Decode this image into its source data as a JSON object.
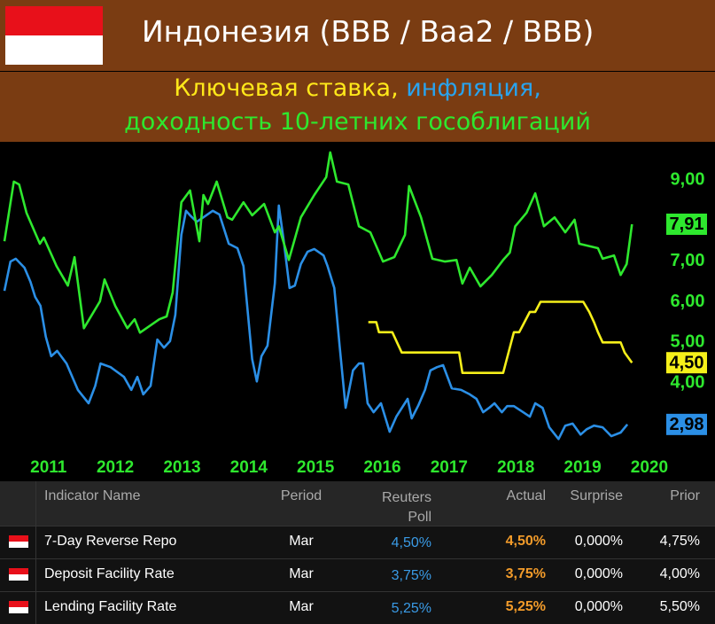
{
  "header": {
    "title": "Индонезия (BBB / Baa2 / BBB)"
  },
  "chart_data": {
    "type": "line",
    "subtitle": [
      "Ключевая ставка,",
      "инфляция,",
      "доходность 10-летних гособлигаций"
    ],
    "xlim": [
      2010.3,
      2020.2
    ],
    "xticks": [
      2011,
      2012,
      2013,
      2014,
      2015,
      2016,
      2017,
      2018,
      2019,
      2020
    ],
    "ylim": [
      2.3,
      9.83
    ],
    "yticks": [
      {
        "value": 9,
        "label": "9,00"
      },
      {
        "value": 7,
        "label": "7,00"
      },
      {
        "value": 6,
        "label": "6,00"
      },
      {
        "value": 5,
        "label": "5,00"
      },
      {
        "value": 4,
        "label": "4,00"
      }
    ],
    "tick_color": "#2ee82e",
    "series": [
      {
        "color": "#f5ef1a",
        "x": [
          2015.79,
          2015.91,
          2015.95,
          2016.15,
          2016.22,
          2016.29,
          2017.15,
          2017.2,
          2017.81,
          2017.97,
          2018.05,
          2018.13,
          2018.21,
          2018.29,
          2018.37,
          2019.01,
          2019.1,
          2019.17,
          2019.23,
          2019.3,
          2019.57,
          2019.63,
          2019.74
        ],
        "values": [
          5.5,
          5.5,
          5.25,
          5.25,
          5.0,
          4.75,
          4.75,
          4.25,
          4.25,
          5.25,
          5.25,
          5.5,
          5.75,
          5.75,
          6.0,
          6.0,
          5.75,
          5.5,
          5.25,
          5.0,
          5.0,
          4.75,
          4.5
        ],
        "value_labels": [
          null,
          null,
          null,
          null,
          null,
          null,
          null,
          null,
          null,
          null,
          null,
          null,
          null,
          null,
          null,
          null,
          null,
          null,
          null,
          null,
          null,
          null,
          "4,50"
        ]
      },
      {
        "color": "#2b8fe6",
        "x": [
          2010.34,
          2010.43,
          2010.51,
          2010.64,
          2010.73,
          2010.8,
          2010.88,
          2010.96,
          2011.04,
          2011.13,
          2011.27,
          2011.44,
          2011.6,
          2011.7,
          2011.78,
          2011.93,
          2012.13,
          2012.24,
          2012.33,
          2012.42,
          2012.53,
          2012.63,
          2012.73,
          2012.82,
          2012.9,
          2012.99,
          2013.06,
          2013.12,
          2013.22,
          2013.32,
          2013.46,
          2013.56,
          2013.7,
          2013.83,
          2013.92,
          2014.05,
          2014.12,
          2014.19,
          2014.28,
          2014.39,
          2014.45,
          2014.52,
          2014.61,
          2014.69,
          2014.78,
          2014.88,
          2014.98,
          2015.12,
          2015.18,
          2015.28,
          2015.36,
          2015.45,
          2015.56,
          2015.65,
          2015.71,
          2015.78,
          2015.87,
          2015.98,
          2016.11,
          2016.21,
          2016.38,
          2016.44,
          2016.54,
          2016.64,
          2016.72,
          2016.82,
          2016.91,
          2017.04,
          2017.18,
          2017.31,
          2017.41,
          2017.51,
          2017.6,
          2017.68,
          2017.79,
          2017.87,
          2017.97,
          2018.11,
          2018.21,
          2018.29,
          2018.4,
          2018.5,
          2018.64,
          2018.74,
          2018.85,
          2018.97,
          2019.06,
          2019.17,
          2019.3,
          2019.43,
          2019.57,
          2019.67
        ],
        "values": [
          6.27,
          6.99,
          7.06,
          6.84,
          6.49,
          6.12,
          5.9,
          5.14,
          4.66,
          4.79,
          4.48,
          3.83,
          3.5,
          3.93,
          4.48,
          4.39,
          4.15,
          3.83,
          4.15,
          3.72,
          3.93,
          5.07,
          4.87,
          5.03,
          5.68,
          7.65,
          8.24,
          8.13,
          7.97,
          8.08,
          8.24,
          8.15,
          7.43,
          7.32,
          6.88,
          4.59,
          4.04,
          4.66,
          4.92,
          6.45,
          8.37,
          7.54,
          6.34,
          6.4,
          6.93,
          7.23,
          7.3,
          7.14,
          6.88,
          6.34,
          4.92,
          3.39,
          4.31,
          4.48,
          4.48,
          3.5,
          3.28,
          3.5,
          2.8,
          3.17,
          3.61,
          3.13,
          3.45,
          3.83,
          4.31,
          4.39,
          4.44,
          3.87,
          3.83,
          3.72,
          3.61,
          3.28,
          3.39,
          3.5,
          3.28,
          3.43,
          3.43,
          3.28,
          3.17,
          3.5,
          3.39,
          2.91,
          2.62,
          2.95,
          3.0,
          2.73,
          2.86,
          2.95,
          2.91,
          2.69,
          2.78,
          2.98
        ],
        "value_labels": [
          null,
          null,
          null,
          null,
          null,
          null,
          null,
          null,
          null,
          null,
          null,
          null,
          null,
          null,
          null,
          null,
          null,
          null,
          null,
          null,
          null,
          null,
          null,
          null,
          null,
          null,
          null,
          null,
          null,
          null,
          null,
          null,
          null,
          null,
          null,
          null,
          null,
          null,
          null,
          null,
          null,
          null,
          null,
          null,
          null,
          null,
          null,
          null,
          null,
          null,
          null,
          null,
          null,
          null,
          null,
          null,
          null,
          null,
          null,
          null,
          null,
          null,
          null,
          null,
          null,
          null,
          null,
          null,
          null,
          null,
          null,
          null,
          null,
          null,
          null,
          null,
          null,
          null,
          null,
          null,
          null,
          null,
          null,
          null,
          null,
          null,
          null,
          null,
          null,
          null,
          null,
          "2,98"
        ]
      },
      {
        "color": "#2ee82e",
        "x": [
          2010.34,
          2010.48,
          2010.56,
          2010.67,
          2010.87,
          2010.93,
          2011.12,
          2011.29,
          2011.39,
          2011.53,
          2011.77,
          2011.84,
          2012.0,
          2012.18,
          2012.29,
          2012.37,
          2012.66,
          2012.77,
          2012.86,
          2012.99,
          2013.12,
          2013.26,
          2013.32,
          2013.39,
          2013.52,
          2013.68,
          2013.75,
          2013.92,
          2014.05,
          2014.23,
          2014.39,
          2014.45,
          2014.6,
          2014.78,
          2014.98,
          2015.16,
          2015.22,
          2015.32,
          2015.49,
          2015.65,
          2015.82,
          2016.01,
          2016.18,
          2016.34,
          2016.4,
          2016.58,
          2016.75,
          2016.94,
          2017.11,
          2017.2,
          2017.31,
          2017.47,
          2017.64,
          2017.81,
          2017.91,
          2017.99,
          2018.16,
          2018.29,
          2018.42,
          2018.58,
          2018.74,
          2018.88,
          2018.95,
          2019.23,
          2019.3,
          2019.47,
          2019.57,
          2019.66,
          2019.74
        ],
        "values": [
          7.49,
          8.96,
          8.89,
          8.19,
          7.43,
          7.58,
          6.88,
          6.4,
          7.1,
          5.35,
          6.01,
          6.55,
          5.9,
          5.35,
          5.57,
          5.24,
          5.57,
          5.64,
          6.23,
          8.45,
          8.74,
          7.49,
          8.63,
          8.41,
          8.96,
          8.08,
          8.02,
          8.45,
          8.13,
          8.41,
          7.71,
          7.86,
          7.03,
          8.08,
          8.63,
          9.07,
          9.68,
          8.96,
          8.89,
          7.86,
          7.71,
          6.99,
          7.1,
          7.65,
          8.85,
          8.08,
          7.06,
          6.99,
          7.03,
          6.45,
          6.84,
          6.38,
          6.66,
          7.03,
          7.21,
          7.86,
          8.19,
          8.67,
          7.86,
          8.08,
          7.71,
          8.02,
          7.43,
          7.32,
          7.06,
          7.14,
          6.66,
          6.93,
          7.91
        ],
        "value_labels": [
          null,
          null,
          null,
          null,
          null,
          null,
          null,
          null,
          null,
          null,
          null,
          null,
          null,
          null,
          null,
          null,
          null,
          null,
          null,
          null,
          null,
          null,
          null,
          null,
          null,
          null,
          null,
          null,
          null,
          null,
          null,
          null,
          null,
          null,
          null,
          null,
          null,
          null,
          null,
          null,
          null,
          null,
          null,
          null,
          null,
          null,
          null,
          null,
          null,
          null,
          null,
          null,
          null,
          null,
          null,
          null,
          null,
          null,
          null,
          null,
          null,
          null,
          null,
          null,
          null,
          null,
          null,
          null,
          "7,91"
        ]
      }
    ]
  },
  "table": {
    "columns": [
      "Indicator Name",
      "Period",
      "Reuters Poll",
      "Actual",
      "Surprise",
      "Prior"
    ],
    "rows": [
      [
        "7-Day Reverse Repo",
        "Mar",
        "4,50%",
        "4,50%",
        "0,000%",
        "4,75%"
      ],
      [
        "Deposit Facility Rate",
        "Mar",
        "3,75%",
        "3,75%",
        "0,000%",
        "4,00%"
      ],
      [
        "Lending Facility Rate",
        "Mar",
        "5,25%",
        "5,25%",
        "0,000%",
        "5,50%"
      ]
    ]
  }
}
